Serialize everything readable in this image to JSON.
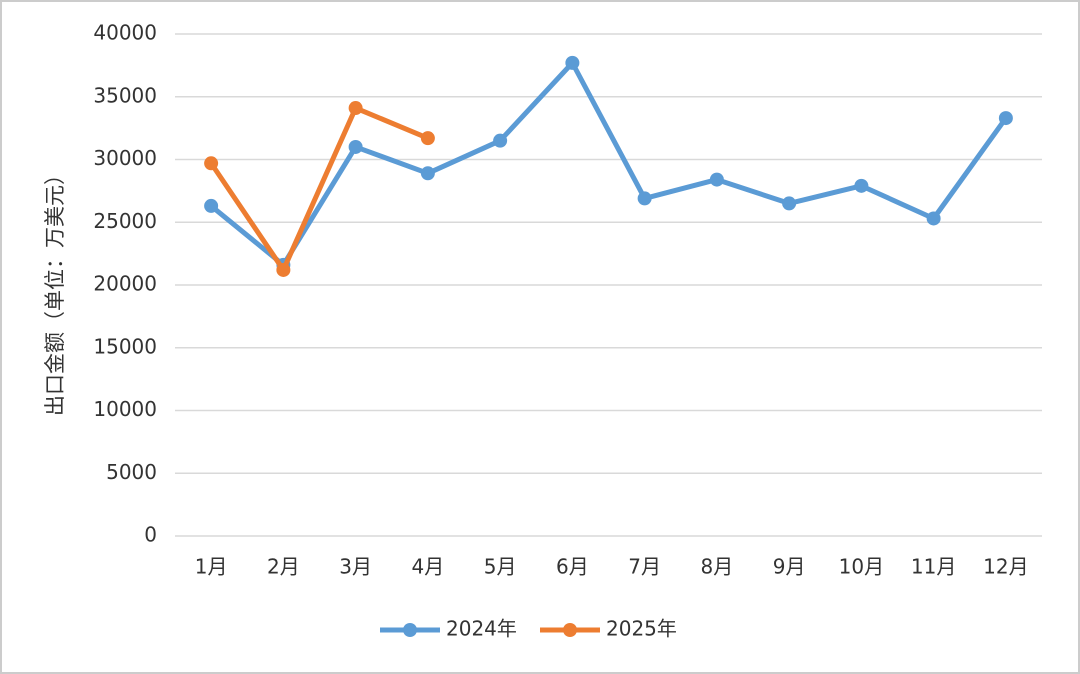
{
  "chart_data": {
    "type": "line",
    "y_label": "出口金额（单位：万美元）",
    "categories": [
      "1月",
      "2月",
      "3月",
      "4月",
      "5月",
      "6月",
      "7月",
      "8月",
      "9月",
      "10月",
      "11月",
      "12月"
    ],
    "series": [
      {
        "name": "2024年",
        "color": "#5b9bd5",
        "values": [
          26300,
          21600,
          31000,
          28900,
          31500,
          37700,
          26900,
          28400,
          26500,
          27900,
          25300,
          33300
        ]
      },
      {
        "name": "2025年",
        "color": "#ed7d31",
        "values": [
          29700,
          21200,
          34100,
          31700,
          null,
          null,
          null,
          null,
          null,
          null,
          null,
          null
        ]
      }
    ],
    "ylim": [
      0,
      40000
    ],
    "yticks": [
      0,
      5000,
      10000,
      15000,
      20000,
      25000,
      30000,
      35000,
      40000
    ],
    "grid": true,
    "legend": "bottom"
  }
}
